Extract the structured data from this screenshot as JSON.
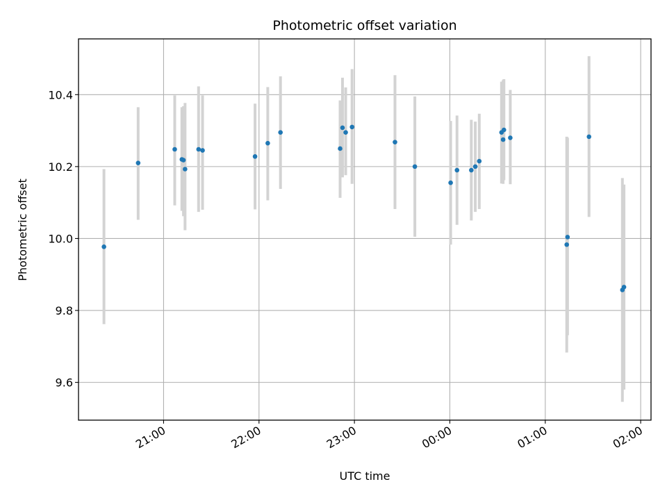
{
  "chart_data": {
    "type": "scatter",
    "title": "Photometric offset variation",
    "xlabel": "UTC time",
    "ylabel": "Photometric offset",
    "xlim": [
      "2000-01-01 20:06:30",
      "2000-01-02 02:06:30"
    ],
    "ylim": [
      9.495,
      10.555
    ],
    "x_ticks": [
      "2000-01-01 21:00",
      "2000-01-01 22:00",
      "2000-01-01 23:00",
      "2000-01-02 00:00",
      "2000-01-02 01:00",
      "2000-01-02 02:00"
    ],
    "x_tick_labels": [
      "21:00",
      "22:00",
      "23:00",
      "00:00",
      "01:00",
      "02:00"
    ],
    "y_ticks": [
      9.6,
      9.8,
      10.0,
      10.2,
      10.4
    ],
    "y_tick_labels": [
      "9.6",
      "9.8",
      "10.0",
      "10.2",
      "10.4"
    ],
    "grid": true,
    "legend": "none",
    "point_color": "#1f77b4",
    "errorbar_color": "#d3d3d3",
    "series": [
      {
        "points": [
          {
            "x": "2000-01-01 20:22:30",
            "y": 9.977,
            "yerr_low": 9.762,
            "yerr_high": 10.193
          },
          {
            "x": "2000-01-01 20:44:00",
            "y": 10.21,
            "yerr_low": 10.052,
            "yerr_high": 10.365
          },
          {
            "x": "2000-01-01 21:07:00",
            "y": 10.248,
            "yerr_low": 10.092,
            "yerr_high": 10.398
          },
          {
            "x": "2000-01-01 21:11:30",
            "y": 10.22,
            "yerr_low": 10.077,
            "yerr_high": 10.365
          },
          {
            "x": "2000-01-01 21:12:30",
            "y": 10.218,
            "yerr_low": 10.062,
            "yerr_high": 10.368
          },
          {
            "x": "2000-01-01 21:13:30",
            "y": 10.193,
            "yerr_low": 10.023,
            "yerr_high": 10.377
          },
          {
            "x": "2000-01-01 21:22:00",
            "y": 10.248,
            "yerr_low": 10.074,
            "yerr_high": 10.423
          },
          {
            "x": "2000-01-01 21:24:30",
            "y": 10.245,
            "yerr_low": 10.08,
            "yerr_high": 10.398
          },
          {
            "x": "2000-01-01 21:57:30",
            "y": 10.228,
            "yerr_low": 10.081,
            "yerr_high": 10.375
          },
          {
            "x": "2000-01-01 22:05:30",
            "y": 10.265,
            "yerr_low": 10.106,
            "yerr_high": 10.421
          },
          {
            "x": "2000-01-01 22:13:30",
            "y": 10.295,
            "yerr_low": 10.138,
            "yerr_high": 10.451
          },
          {
            "x": "2000-01-01 22:51:00",
            "y": 10.25,
            "yerr_low": 10.113,
            "yerr_high": 10.384
          },
          {
            "x": "2000-01-01 22:52:30",
            "y": 10.308,
            "yerr_low": 10.17,
            "yerr_high": 10.447
          },
          {
            "x": "2000-01-01 22:54:30",
            "y": 10.295,
            "yerr_low": 10.176,
            "yerr_high": 10.42
          },
          {
            "x": "2000-01-01 22:58:30",
            "y": 10.31,
            "yerr_low": 10.152,
            "yerr_high": 10.471
          },
          {
            "x": "2000-01-01 23:25:30",
            "y": 10.268,
            "yerr_low": 10.082,
            "yerr_high": 10.454
          },
          {
            "x": "2000-01-01 23:38:00",
            "y": 10.2,
            "yerr_low": 10.005,
            "yerr_high": 10.395
          },
          {
            "x": "2000-01-02 00:00:30",
            "y": 10.155,
            "yerr_low": 9.983,
            "yerr_high": 10.327
          },
          {
            "x": "2000-01-02 00:04:30",
            "y": 10.19,
            "yerr_low": 10.038,
            "yerr_high": 10.342
          },
          {
            "x": "2000-01-02 00:13:30",
            "y": 10.19,
            "yerr_low": 10.05,
            "yerr_high": 10.33
          },
          {
            "x": "2000-01-02 00:16:00",
            "y": 10.2,
            "yerr_low": 10.074,
            "yerr_high": 10.325
          },
          {
            "x": "2000-01-02 00:18:30",
            "y": 10.215,
            "yerr_low": 10.082,
            "yerr_high": 10.347
          },
          {
            "x": "2000-01-02 00:32:30",
            "y": 10.295,
            "yerr_low": 10.153,
            "yerr_high": 10.436
          },
          {
            "x": "2000-01-02 00:33:30",
            "y": 10.275,
            "yerr_low": 10.152,
            "yerr_high": 10.44
          },
          {
            "x": "2000-01-02 00:34:00",
            "y": 10.302,
            "yerr_low": 10.162,
            "yerr_high": 10.443
          },
          {
            "x": "2000-01-02 00:38:00",
            "y": 10.28,
            "yerr_low": 10.151,
            "yerr_high": 10.413
          },
          {
            "x": "2000-01-02 01:13:30",
            "y": 9.983,
            "yerr_low": 9.683,
            "yerr_high": 10.283
          },
          {
            "x": "2000-01-02 01:14:00",
            "y": 10.004,
            "yerr_low": 9.731,
            "yerr_high": 10.28
          },
          {
            "x": "2000-01-02 01:27:30",
            "y": 10.283,
            "yerr_low": 10.06,
            "yerr_high": 10.507
          },
          {
            "x": "2000-01-02 01:48:30",
            "y": 9.857,
            "yerr_low": 9.546,
            "yerr_high": 10.168
          },
          {
            "x": "2000-01-02 01:49:30",
            "y": 9.865,
            "yerr_low": 9.58,
            "yerr_high": 10.15
          }
        ]
      }
    ]
  }
}
